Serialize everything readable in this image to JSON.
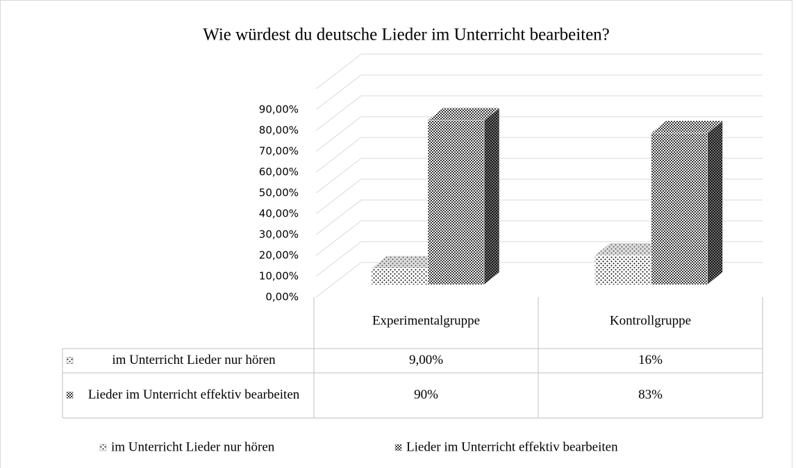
{
  "chart_data": {
    "type": "bar3d",
    "title": "Wie würdest du deutsche Lieder im Unterricht bearbeiten?",
    "categories": [
      "Experimentalgruppe",
      "Kontrollgruppe"
    ],
    "series": [
      {
        "name": "im Unterricht Lieder nur hören",
        "color": "#ffffff",
        "values": [
          9,
          16
        ],
        "value_labels": [
          "9,00%",
          "16%"
        ]
      },
      {
        "name": "Lieder im Unterricht effektiv bearbeiten",
        "color": "#444444",
        "values": [
          90,
          83
        ],
        "value_labels": [
          "90%",
          "83%"
        ]
      }
    ],
    "ylim": [
      0,
      100
    ],
    "yticks": [
      {
        "value": 0,
        "label": "0,00%"
      },
      {
        "value": 10,
        "label": "10,00%"
      },
      {
        "value": 20,
        "label": "20,00%"
      },
      {
        "value": 30,
        "label": "30,00%"
      },
      {
        "value": 40,
        "label": "40,00%"
      },
      {
        "value": 50,
        "label": "50,00%"
      },
      {
        "value": 60,
        "label": "60,00%"
      },
      {
        "value": 70,
        "label": "70,00%"
      },
      {
        "value": 80,
        "label": "80,00%"
      },
      {
        "value": 90,
        "label": "90,00%"
      }
    ],
    "grid": true
  }
}
